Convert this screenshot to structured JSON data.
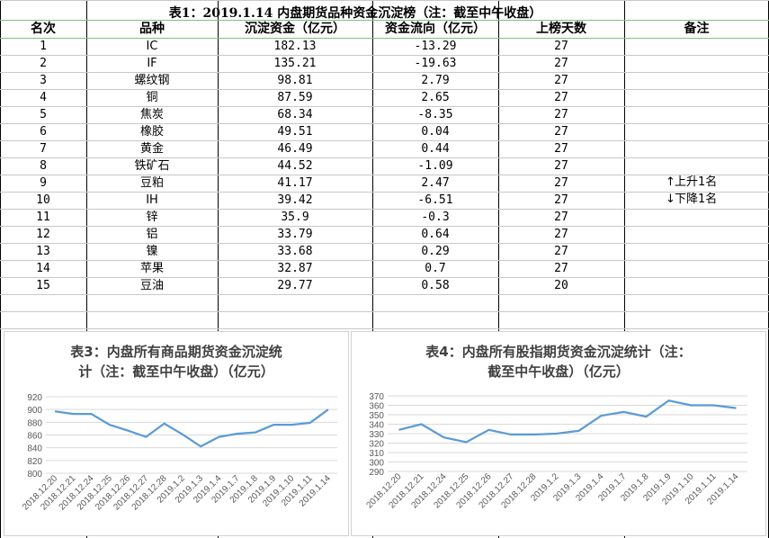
{
  "table": {
    "title": "表1：2019.1.14 内盘期货品种资金沉淀榜（注：截至中午收盘）",
    "headers": [
      "名次",
      "品种",
      "沉淀资金（亿元）",
      "资金流向（亿元）",
      "上榜天数",
      "备注"
    ],
    "rows": [
      [
        "1",
        "IC",
        "182.13",
        "-13.29",
        "27"
      ],
      [
        "2",
        "IF",
        "135.21",
        "-19.63",
        "27"
      ],
      [
        "3",
        "螺纹钢",
        "98.81",
        "2.79",
        "27"
      ],
      [
        "4",
        "铜",
        "87.59",
        "2.65",
        "27"
      ],
      [
        "5",
        "焦炭",
        "68.34",
        "-8.35",
        "27"
      ],
      [
        "6",
        "橡胶",
        "49.51",
        "0.04",
        "27"
      ],
      [
        "7",
        "黄金",
        "46.49",
        "0.44",
        "27"
      ],
      [
        "8",
        "铁矿石",
        "44.52",
        "-1.09",
        "27"
      ],
      [
        "9",
        "豆粕",
        "41.17",
        "2.47",
        "27"
      ],
      [
        "10",
        "IH",
        "39.42",
        "-6.51",
        "27"
      ],
      [
        "11",
        "锌",
        "35.9",
        "-0.3",
        "27"
      ],
      [
        "12",
        "铝",
        "33.79",
        "0.64",
        "27"
      ],
      [
        "13",
        "镍",
        "33.68",
        "0.29",
        "27"
      ],
      [
        "14",
        "苹果",
        "32.87",
        "0.7",
        "27"
      ],
      [
        "15",
        "豆油",
        "29.77",
        "0.58",
        "20"
      ]
    ],
    "notes": {
      "up_arrow": "↑",
      "up": "上升1名",
      "down_arrow": "↓",
      "down": "下降1名"
    }
  },
  "chart_data": [
    {
      "type": "line",
      "title": "表3：内盘所有商品期货资金沉淀统计（注：截至中午收盘）（亿元）",
      "title_line1": "表3：内盘所有商品期货资金沉淀统",
      "title_line2": "计（注：截至中午收盘）（亿元）",
      "x": [
        "2018.12.20",
        "2018.12.21",
        "2018.12.24",
        "2018.12.25",
        "2018.12.26",
        "2018.12.27",
        "2018.12.28",
        "2019.1.2",
        "2019.1.3",
        "2019.1.4",
        "2019.1.7",
        "2019.1.8",
        "2019.1.9",
        "2019.1.10",
        "2019.1.11",
        "2019.1.14"
      ],
      "values": [
        897,
        893,
        893,
        876,
        867,
        857,
        878,
        861,
        842,
        857,
        862,
        864,
        876,
        876,
        879,
        900
      ],
      "ylim": [
        800,
        920
      ],
      "yticks": [
        800,
        820,
        840,
        860,
        880,
        900,
        920
      ],
      "color": "#5b9bd5",
      "grid": true
    },
    {
      "type": "line",
      "title": "表4：内盘所有股指期货资金沉淀统计（注：截至中午收盘）（亿元）",
      "title_line1": "表4：内盘所有股指期货资金沉淀统计（注：",
      "title_line2": "截至中午收盘）（亿元）",
      "x": [
        "2018.12.20",
        "2018.12.21",
        "2018.12.24",
        "2018.12.25",
        "2018.12.26",
        "2018.12.27",
        "2018.12.28",
        "2019.1.2",
        "2019.1.3",
        "2019.1.4",
        "2019.1.7",
        "2019.1.8",
        "2019.1.9",
        "2019.1.10",
        "2019.1.11",
        "2019.1.14"
      ],
      "values": [
        334,
        340,
        326,
        321,
        334,
        329,
        329,
        330,
        333,
        349,
        353,
        348,
        365,
        360,
        360,
        357
      ],
      "ylim": [
        290,
        370
      ],
      "yticks": [
        290,
        300,
        310,
        320,
        330,
        340,
        350,
        360,
        370
      ],
      "color": "#5b9bd5",
      "grid": true
    }
  ]
}
